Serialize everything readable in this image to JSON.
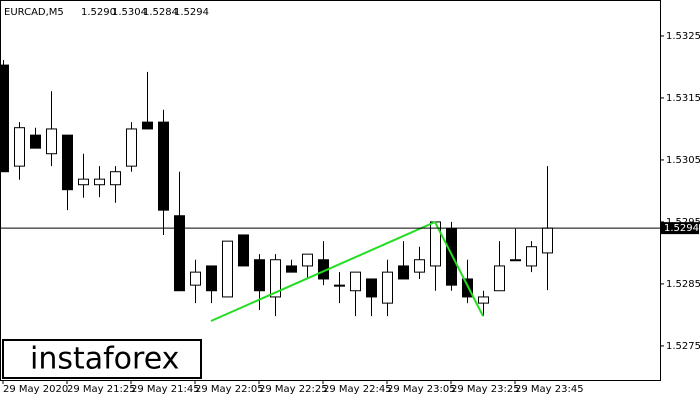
{
  "chart_data": {
    "type": "candlestick",
    "symbol": "EURCAD,M5",
    "ohlc_label": [
      "1.5290",
      "1.5304",
      "1.5284",
      "1.5294"
    ],
    "watermark": "instaforex",
    "last_price": 1.5294,
    "categories": [
      "29 May 2020",
      null,
      null,
      null,
      "29 May 21:25",
      null,
      null,
      null,
      "29 May 21:45",
      null,
      null,
      null,
      "29 May 22:05",
      null,
      null,
      null,
      "29 May 22:25",
      null,
      null,
      null,
      "29 May 22:45",
      null,
      null,
      null,
      "29 May 23:05",
      null,
      null,
      null,
      "29 May 23:25",
      null,
      null,
      null,
      "29 May 23:45",
      null,
      null
    ],
    "open": [
      1.53203,
      1.5304,
      1.5309,
      1.5306,
      1.5309,
      1.5301,
      1.5301,
      1.5301,
      1.5304,
      1.53111,
      1.53111,
      1.5296,
      1.52848,
      1.52879,
      1.52829,
      1.52929,
      1.52889,
      1.52829,
      1.52879,
      1.52879,
      1.52889,
      1.52848,
      1.52839,
      1.52858,
      1.52819,
      1.52879,
      1.52869,
      1.52879,
      1.52939,
      1.52858,
      1.52819,
      1.52839,
      1.52889,
      1.52879,
      1.529
    ],
    "high": [
      1.53211,
      1.53111,
      1.53102,
      1.53161,
      1.5309,
      1.5306,
      1.5304,
      1.5304,
      1.53111,
      1.53192,
      1.53131,
      1.53031,
      1.52889,
      1.52879,
      1.52919,
      1.52929,
      1.52898,
      1.52898,
      1.52889,
      1.52898,
      1.52919,
      1.52869,
      1.52869,
      1.52858,
      1.52889,
      1.52919,
      1.5291,
      1.5295,
      1.5295,
      1.52889,
      1.52839,
      1.52919,
      1.52939,
      1.52919,
      1.5304
    ],
    "low": [
      1.53031,
      1.53018,
      1.53069,
      1.5304,
      1.52969,
      1.52989,
      1.5299,
      1.52981,
      1.53031,
      1.531,
      1.52929,
      1.52839,
      1.52819,
      1.52819,
      1.52829,
      1.52879,
      1.52808,
      1.52798,
      1.52869,
      1.52858,
      1.52848,
      1.52819,
      1.52798,
      1.52798,
      1.52798,
      1.52858,
      1.52858,
      1.52839,
      1.52839,
      1.52819,
      1.52798,
      1.52839,
      1.52889,
      1.52869,
      1.5284
    ],
    "close": [
      1.53031,
      1.53102,
      1.53069,
      1.531,
      1.53002,
      1.53019,
      1.53019,
      1.53031,
      1.531,
      1.531,
      1.52969,
      1.52839,
      1.52869,
      1.52839,
      1.52919,
      1.52879,
      1.52839,
      1.52889,
      1.52869,
      1.52898,
      1.52858,
      1.52848,
      1.52869,
      1.52829,
      1.52869,
      1.52858,
      1.52889,
      1.5295,
      1.52848,
      1.52829,
      1.52829,
      1.52879,
      1.52889,
      1.5291,
      1.5294
    ],
    "up_color": "#ffffff",
    "down_color": "#000000",
    "ylim": [
      1.52695,
      1.53308
    ],
    "yticks": [
      1.5275,
      1.5285,
      1.5295,
      1.5305,
      1.5315,
      1.5325
    ]
  }
}
